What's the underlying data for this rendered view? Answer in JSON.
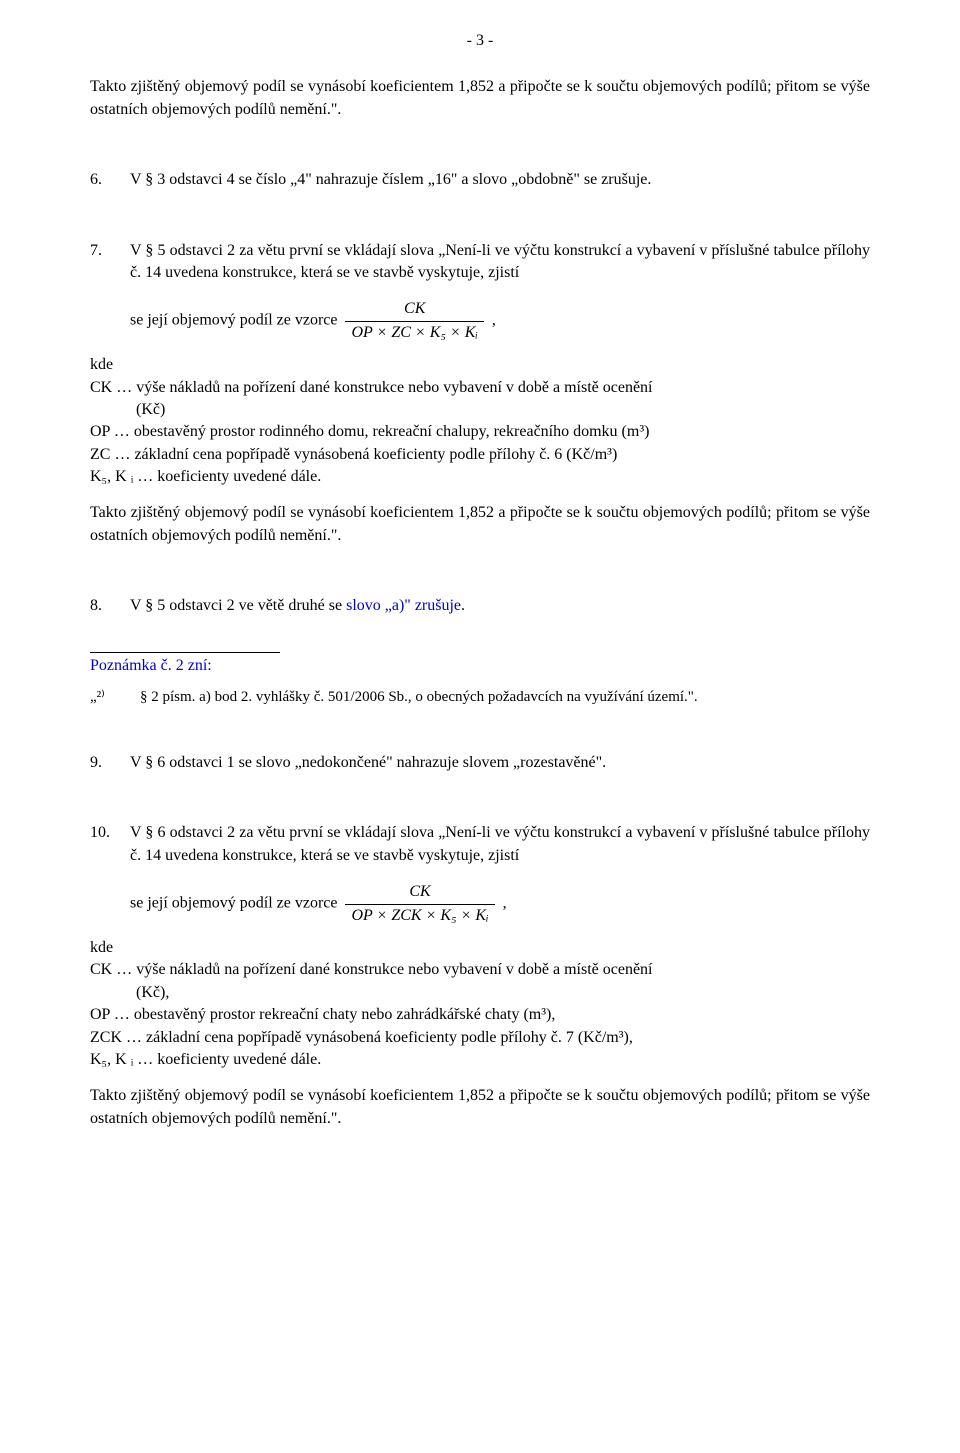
{
  "page_number": "- 3 -",
  "para_intro_top": "Takto zjištěný objemový podíl se vynásobí koeficientem 1,852 a připočte se k součtu objemových podílů; přitom se výše ostatních objemových podílů nemění.\".",
  "item6": {
    "num": "6.",
    "text": "V § 3 odstavci 4 se číslo „4\" nahrazuje číslem „16\" a slovo „obdobně\" se zrušuje."
  },
  "item7": {
    "num": "7.",
    "text_top": "V § 5 odstavci 2 za větu první se vkládají slova „Není-li ve výčtu konstrukcí a vybavení v příslušné tabulce přílohy č. 14 uvedena konstrukce, která se ve stavbě vyskytuje, zjistí",
    "formula_lead": "se její objemový podíl ze vzorce",
    "formula_top": "CK",
    "formula_bottom": "OP × ZC × K₅ × Kᵢ",
    "formula_tail": ","
  },
  "defs1": {
    "kde": "kde",
    "ck": "CK … výše nákladů na pořízení dané konstrukce nebo vybavení v době a místě ocenění",
    "ck2": "(Kč)",
    "op": "OP … obestavěný prostor rodinného domu, rekreační chalupy, rekreačního domku (m³)",
    "zc": "ZC … základní cena popřípadě vynásobená koeficienty podle přílohy č. 6 (Kč/m³)",
    "k": "K₅, K ᵢ … koeficienty uvedené dále."
  },
  "para_intro_mid": "Takto zjištěný objemový podíl se vynásobí koeficientem 1,852 a připočte se k součtu objemových podílů; přitom se výše ostatních objemových podílů nemění.\".",
  "item8": {
    "num": "8.",
    "text_pre": "V § 5 odstavci 2 ve větě druhé se ",
    "text_blue1": "slovo „a)\"",
    "text_mid": " ",
    "text_blue2": "zrušuje",
    "text_post": "."
  },
  "poznamka": "Poznámka č. 2 zní:",
  "footnote": {
    "num": "„²⁾",
    "text": "§ 2 písm. a) bod 2. vyhlášky č. 501/2006 Sb., o obecných požadavcích na využívání území.\"."
  },
  "item9": {
    "num": "9.",
    "text": "V § 6 odstavci 1 se slovo „nedokončené\" nahrazuje slovem  „rozestavěné\"."
  },
  "item10": {
    "num": "10.",
    "text_top": "V § 6 odstavci 2 za větu první se vkládají slova „Není-li ve výčtu konstrukcí a vybavení v příslušné tabulce přílohy č. 14 uvedena konstrukce, která se ve stavbě vyskytuje, zjistí",
    "formula_lead": "se její objemový podíl ze vzorce",
    "formula_top": "CK",
    "formula_bottom": "OP × ZCK × K₅ × Kᵢ",
    "formula_tail": ","
  },
  "defs2": {
    "kde": "kde",
    "ck": "CK … výše nákladů na pořízení dané konstrukce nebo vybavení v době a místě ocenění",
    "ck2": "(Kč),",
    "op": "OP … obestavěný prostor rekreační chaty nebo zahrádkářské chaty (m³),",
    "zck": "ZCK … základní cena popřípadě vynásobená koeficienty podle přílohy č. 7 (Kč/m³),",
    "k": "K₅, K ᵢ … koeficienty uvedené dále."
  },
  "para_intro_end": "Takto zjištěný objemový podíl se vynásobí koeficientem 1,852 a připočte se k součtu objemových podílů; přitom se výše ostatních objemových podílů nemění.\"."
}
